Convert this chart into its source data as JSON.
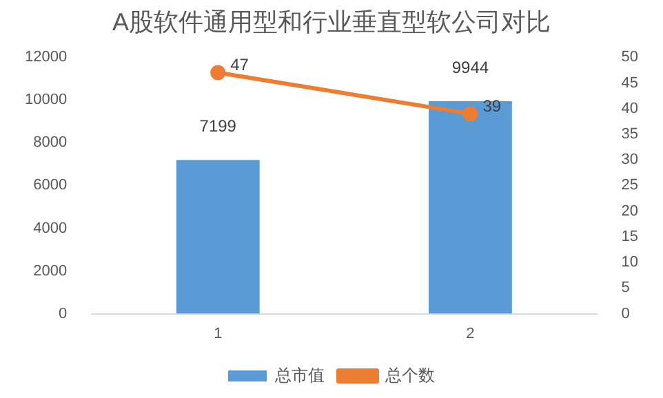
{
  "chart_data": {
    "type": "bar",
    "title": "A股软件通用型和行业垂直型软公司对比",
    "categories": [
      "1",
      "2"
    ],
    "series": [
      {
        "name": "总市值",
        "color": "#5b9bd5",
        "values": [
          7199,
          9944
        ]
      },
      {
        "name": "总个数",
        "type": "line",
        "color": "#ed7d31",
        "axis": "y2",
        "marker": "circle",
        "values": [
          47,
          39
        ]
      }
    ],
    "ylim": [
      0,
      12000
    ],
    "yticks": [
      0,
      2000,
      4000,
      6000,
      8000,
      10000,
      12000
    ],
    "y2lim": [
      0,
      50
    ],
    "y2ticks": [
      0,
      5,
      10,
      15,
      20,
      25,
      30,
      35,
      40,
      45,
      50
    ],
    "grid": false,
    "legend": "bottom",
    "data_labels": true
  }
}
